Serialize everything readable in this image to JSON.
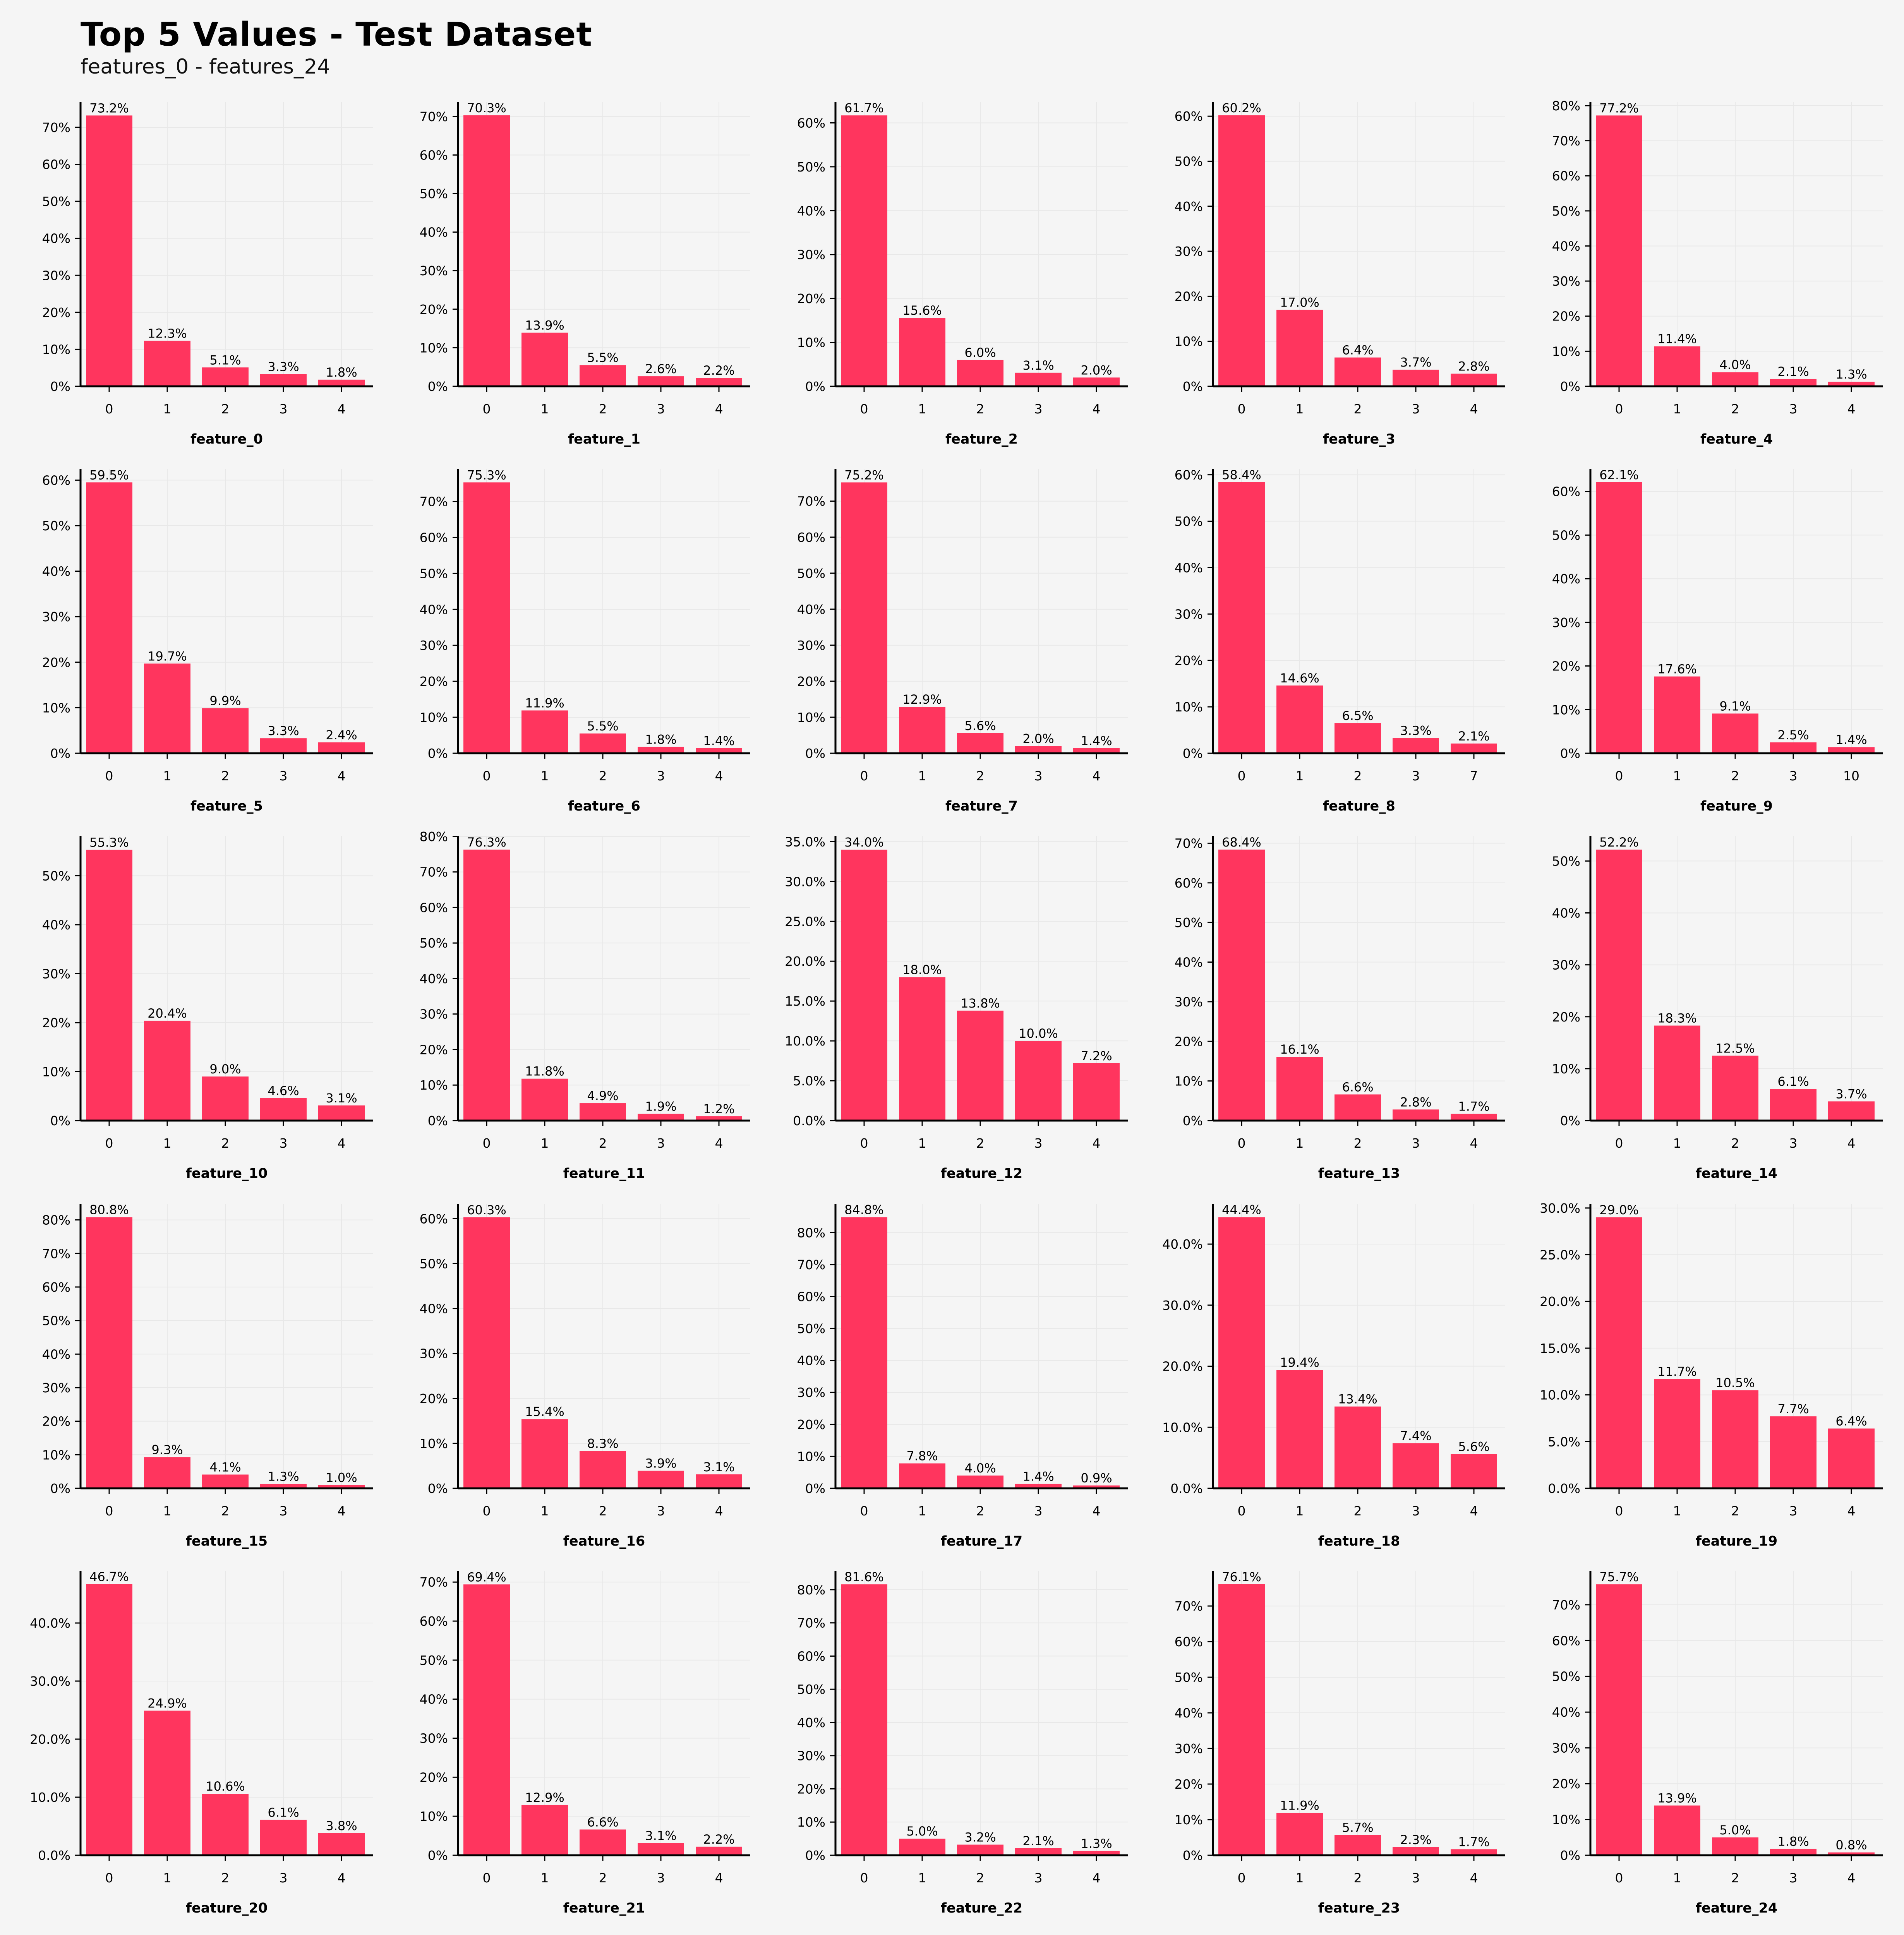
{
  "title": "Top 5 Values - Test Dataset",
  "subtitle": "features_0 - features_24",
  "colors": {
    "bar": "#ff355e",
    "background": "#f5f5f5",
    "grid": "#e8e8e8",
    "axis": "#000000"
  },
  "chart_data": [
    {
      "type": "bar",
      "xlabel": "feature_0",
      "categories": [
        "0",
        "1",
        "2",
        "3",
        "4"
      ],
      "values": [
        73.2,
        12.3,
        5.1,
        3.3,
        1.8
      ],
      "labels": [
        "73.2%",
        "12.3%",
        "5.1%",
        "3.3%",
        "1.8%"
      ],
      "ylim": [
        0,
        76.9
      ],
      "yticks": [
        0,
        10,
        20,
        30,
        40,
        50,
        60,
        70
      ],
      "ytick_labels": [
        "0%",
        "10%",
        "20%",
        "30%",
        "40%",
        "50%",
        "60%",
        "70%"
      ]
    },
    {
      "type": "bar",
      "xlabel": "feature_1",
      "categories": [
        "0",
        "1",
        "2",
        "3",
        "4"
      ],
      "values": [
        70.3,
        13.9,
        5.5,
        2.6,
        2.2
      ],
      "labels": [
        "70.3%",
        "13.9%",
        "5.5%",
        "2.6%",
        "2.2%"
      ],
      "ylim": [
        0,
        73.8
      ],
      "yticks": [
        0,
        10,
        20,
        30,
        40,
        50,
        60,
        70
      ],
      "ytick_labels": [
        "0%",
        "10%",
        "20%",
        "30%",
        "40%",
        "50%",
        "60%",
        "70%"
      ]
    },
    {
      "type": "bar",
      "xlabel": "feature_2",
      "categories": [
        "0",
        "1",
        "2",
        "3",
        "4"
      ],
      "values": [
        61.7,
        15.6,
        6.0,
        3.1,
        2.0
      ],
      "labels": [
        "61.7%",
        "15.6%",
        "6.0%",
        "3.1%",
        "2.0%"
      ],
      "ylim": [
        0,
        64.8
      ],
      "yticks": [
        0,
        10,
        20,
        30,
        40,
        50,
        60
      ],
      "ytick_labels": [
        "0%",
        "10%",
        "20%",
        "30%",
        "40%",
        "50%",
        "60%"
      ]
    },
    {
      "type": "bar",
      "xlabel": "feature_3",
      "categories": [
        "0",
        "1",
        "2",
        "3",
        "4"
      ],
      "values": [
        60.2,
        17.0,
        6.4,
        3.7,
        2.8
      ],
      "labels": [
        "60.2%",
        "17.0%",
        "6.4%",
        "3.7%",
        "2.8%"
      ],
      "ylim": [
        0,
        63.2
      ],
      "yticks": [
        0,
        10,
        20,
        30,
        40,
        50,
        60
      ],
      "ytick_labels": [
        "0%",
        "10%",
        "20%",
        "30%",
        "40%",
        "50%",
        "60%"
      ]
    },
    {
      "type": "bar",
      "xlabel": "feature_4",
      "categories": [
        "0",
        "1",
        "2",
        "3",
        "4"
      ],
      "values": [
        77.2,
        11.4,
        4.0,
        2.1,
        1.3
      ],
      "labels": [
        "77.2%",
        "11.4%",
        "4.0%",
        "2.1%",
        "1.3%"
      ],
      "ylim": [
        0,
        81.1
      ],
      "yticks": [
        0,
        10,
        20,
        30,
        40,
        50,
        60,
        70,
        80
      ],
      "ytick_labels": [
        "0%",
        "10%",
        "20%",
        "30%",
        "40%",
        "50%",
        "60%",
        "70%",
        "80%"
      ]
    },
    {
      "type": "bar",
      "xlabel": "feature_5",
      "categories": [
        "0",
        "1",
        "2",
        "3",
        "4"
      ],
      "values": [
        59.5,
        19.7,
        9.9,
        3.3,
        2.4
      ],
      "labels": [
        "59.5%",
        "19.7%",
        "9.9%",
        "3.3%",
        "2.4%"
      ],
      "ylim": [
        0,
        62.5
      ],
      "yticks": [
        0,
        10,
        20,
        30,
        40,
        50,
        60
      ],
      "ytick_labels": [
        "0%",
        "10%",
        "20%",
        "30%",
        "40%",
        "50%",
        "60%"
      ]
    },
    {
      "type": "bar",
      "xlabel": "feature_6",
      "categories": [
        "0",
        "1",
        "2",
        "3",
        "4"
      ],
      "values": [
        75.3,
        11.9,
        5.5,
        1.8,
        1.4
      ],
      "labels": [
        "75.3%",
        "11.9%",
        "5.5%",
        "1.8%",
        "1.4%"
      ],
      "ylim": [
        0,
        79.1
      ],
      "yticks": [
        0,
        10,
        20,
        30,
        40,
        50,
        60,
        70
      ],
      "ytick_labels": [
        "0%",
        "10%",
        "20%",
        "30%",
        "40%",
        "50%",
        "60%",
        "70%"
      ]
    },
    {
      "type": "bar",
      "xlabel": "feature_7",
      "categories": [
        "0",
        "1",
        "2",
        "3",
        "4"
      ],
      "values": [
        75.2,
        12.9,
        5.6,
        2.0,
        1.4
      ],
      "labels": [
        "75.2%",
        "12.9%",
        "5.6%",
        "2.0%",
        "1.4%"
      ],
      "ylim": [
        0,
        79.0
      ],
      "yticks": [
        0,
        10,
        20,
        30,
        40,
        50,
        60,
        70
      ],
      "ytick_labels": [
        "0%",
        "10%",
        "20%",
        "30%",
        "40%",
        "50%",
        "60%",
        "70%"
      ]
    },
    {
      "type": "bar",
      "xlabel": "feature_8",
      "categories": [
        "0",
        "1",
        "2",
        "3",
        "7"
      ],
      "values": [
        58.4,
        14.6,
        6.5,
        3.3,
        2.1
      ],
      "labels": [
        "58.4%",
        "14.6%",
        "6.5%",
        "3.3%",
        "2.1%"
      ],
      "ylim": [
        0,
        61.3
      ],
      "yticks": [
        0,
        10,
        20,
        30,
        40,
        50,
        60
      ],
      "ytick_labels": [
        "0%",
        "10%",
        "20%",
        "30%",
        "40%",
        "50%",
        "60%"
      ]
    },
    {
      "type": "bar",
      "xlabel": "feature_9",
      "categories": [
        "0",
        "1",
        "2",
        "3",
        "10"
      ],
      "values": [
        62.1,
        17.6,
        9.1,
        2.5,
        1.4
      ],
      "labels": [
        "62.1%",
        "17.6%",
        "9.1%",
        "2.5%",
        "1.4%"
      ],
      "ylim": [
        0,
        65.2
      ],
      "yticks": [
        0,
        10,
        20,
        30,
        40,
        50,
        60
      ],
      "ytick_labels": [
        "0%",
        "10%",
        "20%",
        "30%",
        "40%",
        "50%",
        "60%"
      ]
    },
    {
      "type": "bar",
      "xlabel": "feature_10",
      "categories": [
        "0",
        "1",
        "2",
        "3",
        "4"
      ],
      "values": [
        55.3,
        20.4,
        9.0,
        4.6,
        3.1
      ],
      "labels": [
        "55.3%",
        "20.4%",
        "9.0%",
        "4.6%",
        "3.1%"
      ],
      "ylim": [
        0,
        58.1
      ],
      "yticks": [
        0,
        10,
        20,
        30,
        40,
        50
      ],
      "ytick_labels": [
        "0%",
        "10%",
        "20%",
        "30%",
        "40%",
        "50%"
      ]
    },
    {
      "type": "bar",
      "xlabel": "feature_11",
      "categories": [
        "0",
        "1",
        "2",
        "3",
        "4"
      ],
      "values": [
        76.3,
        11.8,
        4.9,
        1.9,
        1.2
      ],
      "labels": [
        "76.3%",
        "11.8%",
        "4.9%",
        "1.9%",
        "1.2%"
      ],
      "ylim": [
        0,
        80.1
      ],
      "yticks": [
        0,
        10,
        20,
        30,
        40,
        50,
        60,
        70,
        80
      ],
      "ytick_labels": [
        "0%",
        "10%",
        "20%",
        "30%",
        "40%",
        "50%",
        "60%",
        "70%",
        "80%"
      ]
    },
    {
      "type": "bar",
      "xlabel": "feature_12",
      "categories": [
        "0",
        "1",
        "2",
        "3",
        "4"
      ],
      "values": [
        34.0,
        18.0,
        13.8,
        10.0,
        7.2
      ],
      "labels": [
        "34.0%",
        "18.0%",
        "13.8%",
        "10.0%",
        "7.2%"
      ],
      "ylim": [
        0,
        35.7
      ],
      "yticks": [
        0,
        5,
        10,
        15,
        20,
        25,
        30,
        35
      ],
      "ytick_labels": [
        "0.0%",
        "5.0%",
        "10.0%",
        "15.0%",
        "20.0%",
        "25.0%",
        "30.0%",
        "35.0%"
      ]
    },
    {
      "type": "bar",
      "xlabel": "feature_13",
      "categories": [
        "0",
        "1",
        "2",
        "3",
        "4"
      ],
      "values": [
        68.4,
        16.1,
        6.6,
        2.8,
        1.7
      ],
      "labels": [
        "68.4%",
        "16.1%",
        "6.6%",
        "2.8%",
        "1.7%"
      ],
      "ylim": [
        0,
        71.8
      ],
      "yticks": [
        0,
        10,
        20,
        30,
        40,
        50,
        60,
        70
      ],
      "ytick_labels": [
        "0%",
        "10%",
        "20%",
        "30%",
        "40%",
        "50%",
        "60%",
        "70%"
      ]
    },
    {
      "type": "bar",
      "xlabel": "feature_14",
      "categories": [
        "0",
        "1",
        "2",
        "3",
        "4"
      ],
      "values": [
        52.2,
        18.3,
        12.5,
        6.1,
        3.7
      ],
      "labels": [
        "52.2%",
        "18.3%",
        "12.5%",
        "6.1%",
        "3.7%"
      ],
      "ylim": [
        0,
        54.8
      ],
      "yticks": [
        0,
        10,
        20,
        30,
        40,
        50
      ],
      "ytick_labels": [
        "0%",
        "10%",
        "20%",
        "30%",
        "40%",
        "50%"
      ]
    },
    {
      "type": "bar",
      "xlabel": "feature_15",
      "categories": [
        "0",
        "1",
        "2",
        "3",
        "4"
      ],
      "values": [
        80.8,
        9.3,
        4.1,
        1.3,
        1.0
      ],
      "labels": [
        "80.8%",
        "9.3%",
        "4.1%",
        "1.3%",
        "1.0%"
      ],
      "ylim": [
        0,
        84.8
      ],
      "yticks": [
        0,
        10,
        20,
        30,
        40,
        50,
        60,
        70,
        80
      ],
      "ytick_labels": [
        "0%",
        "10%",
        "20%",
        "30%",
        "40%",
        "50%",
        "60%",
        "70%",
        "80%"
      ]
    },
    {
      "type": "bar",
      "xlabel": "feature_16",
      "categories": [
        "0",
        "1",
        "2",
        "3",
        "4"
      ],
      "values": [
        60.3,
        15.4,
        8.3,
        3.9,
        3.1
      ],
      "labels": [
        "60.3%",
        "15.4%",
        "8.3%",
        "3.9%",
        "3.1%"
      ],
      "ylim": [
        0,
        63.3
      ],
      "yticks": [
        0,
        10,
        20,
        30,
        40,
        50,
        60
      ],
      "ytick_labels": [
        "0%",
        "10%",
        "20%",
        "30%",
        "40%",
        "50%",
        "60%"
      ]
    },
    {
      "type": "bar",
      "xlabel": "feature_17",
      "categories": [
        "0",
        "1",
        "2",
        "3",
        "4"
      ],
      "values": [
        84.8,
        7.8,
        4.0,
        1.4,
        0.9
      ],
      "labels": [
        "84.8%",
        "7.8%",
        "4.0%",
        "1.4%",
        "0.9%"
      ],
      "ylim": [
        0,
        89.0
      ],
      "yticks": [
        0,
        10,
        20,
        30,
        40,
        50,
        60,
        70,
        80
      ],
      "ytick_labels": [
        "0%",
        "10%",
        "20%",
        "30%",
        "40%",
        "50%",
        "60%",
        "70%",
        "80%"
      ]
    },
    {
      "type": "bar",
      "xlabel": "feature_18",
      "categories": [
        "0",
        "1",
        "2",
        "3",
        "4"
      ],
      "values": [
        44.4,
        19.4,
        13.4,
        7.4,
        5.6
      ],
      "labels": [
        "44.4%",
        "19.4%",
        "13.4%",
        "7.4%",
        "5.6%"
      ],
      "ylim": [
        0,
        46.6
      ],
      "yticks": [
        0,
        10,
        20,
        30,
        40
      ],
      "ytick_labels": [
        "0.0%",
        "10.0%",
        "20.0%",
        "30.0%",
        "40.0%"
      ]
    },
    {
      "type": "bar",
      "xlabel": "feature_19",
      "categories": [
        "0",
        "1",
        "2",
        "3",
        "4"
      ],
      "values": [
        29.0,
        11.7,
        10.5,
        7.7,
        6.4
      ],
      "labels": [
        "29.0%",
        "11.7%",
        "10.5%",
        "7.7%",
        "6.4%"
      ],
      "ylim": [
        0,
        30.45
      ],
      "yticks": [
        0,
        5,
        10,
        15,
        20,
        25,
        30
      ],
      "ytick_labels": [
        "0.0%",
        "5.0%",
        "10.0%",
        "15.0%",
        "20.0%",
        "25.0%",
        "30.0%"
      ]
    },
    {
      "type": "bar",
      "xlabel": "feature_20",
      "categories": [
        "0",
        "1",
        "2",
        "3",
        "4"
      ],
      "values": [
        46.7,
        24.9,
        10.6,
        6.1,
        3.8
      ],
      "labels": [
        "46.7%",
        "24.9%",
        "10.6%",
        "6.1%",
        "3.8%"
      ],
      "ylim": [
        0,
        49.0
      ],
      "yticks": [
        0,
        10,
        20,
        30,
        40
      ],
      "ytick_labels": [
        "0.0%",
        "10.0%",
        "20.0%",
        "30.0%",
        "40.0%"
      ]
    },
    {
      "type": "bar",
      "xlabel": "feature_21",
      "categories": [
        "0",
        "1",
        "2",
        "3",
        "4"
      ],
      "values": [
        69.4,
        12.9,
        6.6,
        3.1,
        2.2
      ],
      "labels": [
        "69.4%",
        "12.9%",
        "6.6%",
        "3.1%",
        "2.2%"
      ],
      "ylim": [
        0,
        72.9
      ],
      "yticks": [
        0,
        10,
        20,
        30,
        40,
        50,
        60,
        70
      ],
      "ytick_labels": [
        "0%",
        "10%",
        "20%",
        "30%",
        "40%",
        "50%",
        "60%",
        "70%"
      ]
    },
    {
      "type": "bar",
      "xlabel": "feature_22",
      "categories": [
        "0",
        "1",
        "2",
        "3",
        "4"
      ],
      "values": [
        81.6,
        5.0,
        3.2,
        2.1,
        1.3
      ],
      "labels": [
        "81.6%",
        "5.0%",
        "3.2%",
        "2.1%",
        "1.3%"
      ],
      "ylim": [
        0,
        85.7
      ],
      "yticks": [
        0,
        10,
        20,
        30,
        40,
        50,
        60,
        70,
        80
      ],
      "ytick_labels": [
        "0%",
        "10%",
        "20%",
        "30%",
        "40%",
        "50%",
        "60%",
        "70%",
        "80%"
      ]
    },
    {
      "type": "bar",
      "xlabel": "feature_23",
      "categories": [
        "0",
        "1",
        "2",
        "3",
        "4"
      ],
      "values": [
        76.1,
        11.9,
        5.7,
        2.3,
        1.7
      ],
      "labels": [
        "76.1%",
        "11.9%",
        "5.7%",
        "2.3%",
        "1.7%"
      ],
      "ylim": [
        0,
        79.9
      ],
      "yticks": [
        0,
        10,
        20,
        30,
        40,
        50,
        60,
        70
      ],
      "ytick_labels": [
        "0%",
        "10%",
        "20%",
        "30%",
        "40%",
        "50%",
        "60%",
        "70%"
      ]
    },
    {
      "type": "bar",
      "xlabel": "feature_24",
      "categories": [
        "0",
        "1",
        "2",
        "3",
        "4"
      ],
      "values": [
        75.7,
        13.9,
        5.0,
        1.8,
        0.8
      ],
      "labels": [
        "75.7%",
        "13.9%",
        "5.0%",
        "1.8%",
        "0.8%"
      ],
      "ylim": [
        0,
        79.5
      ],
      "yticks": [
        0,
        10,
        20,
        30,
        40,
        50,
        60,
        70
      ],
      "ytick_labels": [
        "0%",
        "10%",
        "20%",
        "30%",
        "40%",
        "50%",
        "60%",
        "70%"
      ]
    }
  ]
}
